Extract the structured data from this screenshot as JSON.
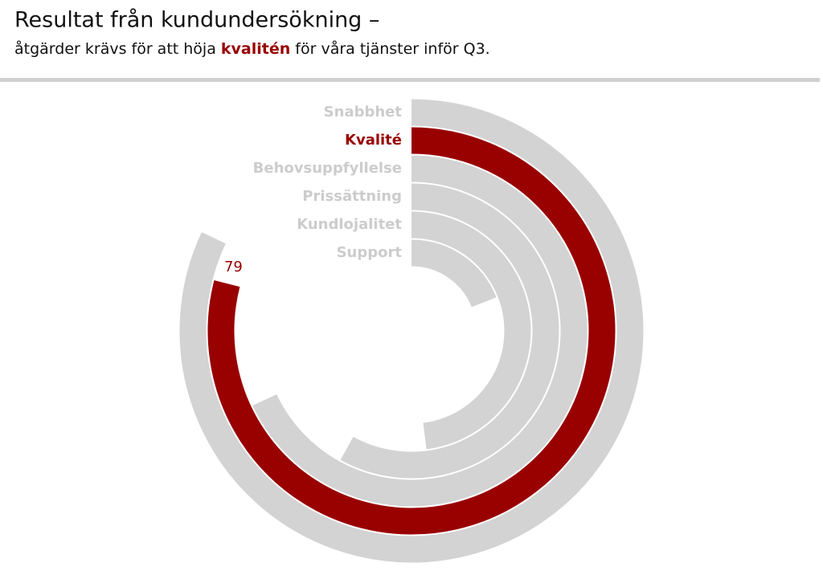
{
  "chart_data": {
    "type": "radial_bar",
    "title": "Resultat från kundundersökning –",
    "subtitle": {
      "before": "åtgärder krävs för att höja ",
      "highlight": "kvalitén",
      "after": " för våra tjänster inför Q3."
    },
    "categories": [
      "Snabbhet",
      "Kvalité",
      "Behovsuppfyllelse",
      "Prissättning",
      "Kundlojalitet",
      "Support"
    ],
    "values": [
      82,
      79,
      68,
      58,
      48,
      19
    ],
    "xlim": [
      0,
      100
    ],
    "color": "#d3d3d3",
    "label_color": "#cccccc",
    "highlight_color": "#990000",
    "highlight_index": 1
  }
}
